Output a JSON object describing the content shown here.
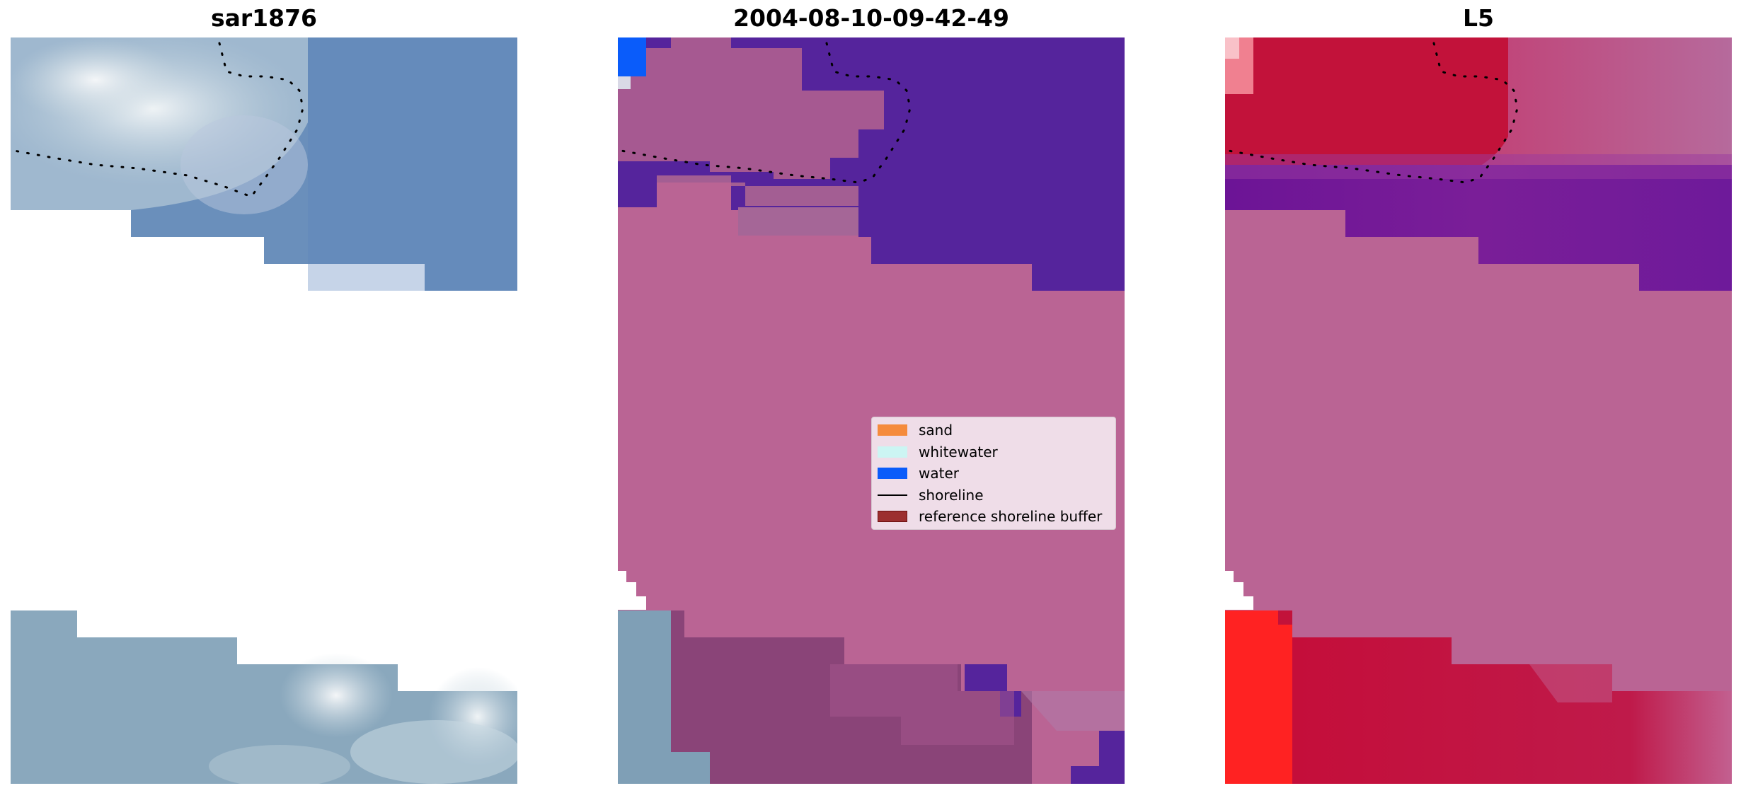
{
  "panels": [
    {
      "id": "rgb",
      "title": "sar1876"
    },
    {
      "id": "classification",
      "title": "2004-08-10-09-42-49"
    },
    {
      "id": "index",
      "title": "L5"
    }
  ],
  "legend": {
    "items": [
      {
        "label": "sand",
        "kind": "patch",
        "color": "#f58b3c"
      },
      {
        "label": "whitewater",
        "kind": "patch",
        "color": "#ccf5f3"
      },
      {
        "label": "water",
        "kind": "patch",
        "color": "#0a5cfa"
      },
      {
        "label": "shoreline",
        "kind": "line",
        "color": "#000000"
      },
      {
        "label": "reference shoreline buffer",
        "kind": "patch",
        "color": "#9c2f2f"
      }
    ]
  },
  "colors": {
    "buffer_mask": "#ba6494",
    "deep_water_class": "#55249c",
    "land_class": "#8a4478",
    "rgb_water": "#5f86b8",
    "index_high": "#c2123a",
    "index_low": "#6c1496",
    "index_land": "#ff2020"
  }
}
